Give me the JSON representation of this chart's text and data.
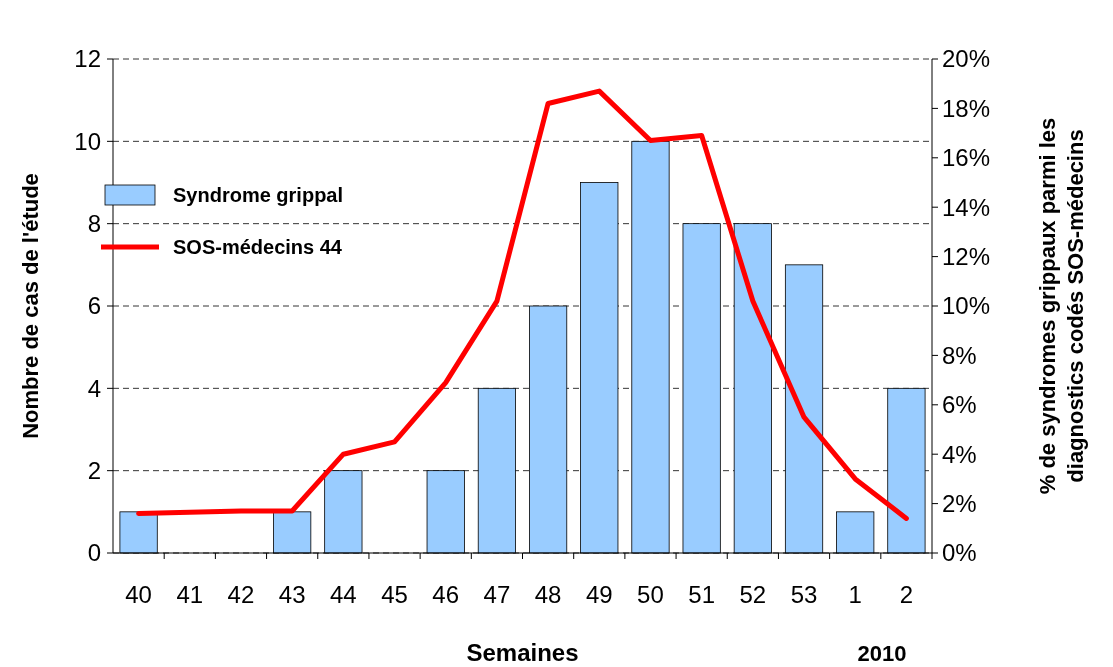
{
  "chart_data": {
    "type": "bar",
    "xlabel": "Semaines",
    "ylabel": "Nombre de cas de l'étude",
    "y2label": "% de syndromes grippaux parmi les\ndiagnostics codés SOS-médecins",
    "categories": [
      "40",
      "41",
      "42",
      "43",
      "44",
      "45",
      "46",
      "47",
      "48",
      "49",
      "50",
      "51",
      "52",
      "53",
      "1",
      "2"
    ],
    "series": [
      {
        "name": "Syndrome grippal",
        "color": "#99ccff",
        "values": [
          1,
          0,
          0,
          1,
          2,
          0,
          2,
          4,
          6,
          9,
          10,
          8,
          8,
          7,
          1,
          4
        ]
      },
      {
        "name": "SOS-médecins 44",
        "type": "line",
        "axis": "y2",
        "color": "#ff0000",
        "values": [
          1.6,
          1.65,
          1.7,
          1.7,
          4.0,
          4.5,
          6.9,
          10.2,
          18.2,
          18.7,
          16.7,
          16.9,
          10.2,
          5.5,
          3.0,
          1.4
        ]
      }
    ],
    "ylim": [
      0,
      12
    ],
    "yticks": [
      0,
      2,
      4,
      6,
      8,
      10,
      12
    ],
    "y2lim": [
      0,
      20
    ],
    "y2ticks": [
      {
        "value": 0,
        "label": "0%"
      },
      {
        "value": 2,
        "label": "2%"
      },
      {
        "value": 4,
        "label": "4%"
      },
      {
        "value": 6,
        "label": "6%"
      },
      {
        "value": 8,
        "label": "8%"
      },
      {
        "value": 10,
        "label": "10%"
      },
      {
        "value": 12,
        "label": "12%"
      },
      {
        "value": 14,
        "label": "14%"
      },
      {
        "value": 16,
        "label": "16%"
      },
      {
        "value": 18,
        "label": "18%"
      },
      {
        "value": 20,
        "label": "20%"
      }
    ],
    "grid": "y",
    "legend": "left",
    "line_style": "solid",
    "marker": "none",
    "annotations": [
      "2010"
    ]
  }
}
